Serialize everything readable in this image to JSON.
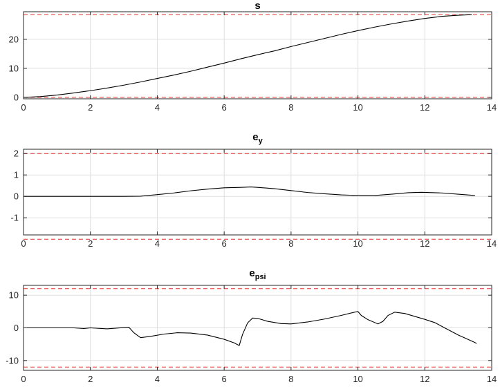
{
  "chart_data": [
    {
      "type": "line",
      "title": "s",
      "title_subscript": "",
      "xlim": [
        0,
        14
      ],
      "ylim": [
        -0.5,
        29.5
      ],
      "x_ticks": [
        0,
        2,
        4,
        6,
        8,
        10,
        12,
        14
      ],
      "y_ticks": [
        0,
        10,
        20
      ],
      "grid": true,
      "limits": [
        28.5,
        0
      ],
      "limit_color": "#e0312f",
      "series": [
        {
          "color": "#000000",
          "points": [
            [
              0,
              0
            ],
            [
              0.5,
              0.25
            ],
            [
              1,
              0.8
            ],
            [
              1.5,
              1.5
            ],
            [
              2,
              2.3
            ],
            [
              2.5,
              3.2
            ],
            [
              3,
              4.2
            ],
            [
              3.5,
              5.3
            ],
            [
              4,
              6.5
            ],
            [
              4.5,
              7.7
            ],
            [
              5,
              9
            ],
            [
              5.5,
              10.4
            ],
            [
              6,
              11.8
            ],
            [
              6.5,
              13.3
            ],
            [
              7,
              14.7
            ],
            [
              7.5,
              16
            ],
            [
              8,
              17.5
            ],
            [
              8.5,
              18.9
            ],
            [
              9,
              20.3
            ],
            [
              9.5,
              21.7
            ],
            [
              10,
              23
            ],
            [
              10.5,
              24.2
            ],
            [
              11,
              25.3
            ],
            [
              11.5,
              26.3
            ],
            [
              12,
              27.2
            ],
            [
              12.5,
              27.9
            ],
            [
              13,
              28.3
            ],
            [
              13.4,
              28.5
            ]
          ]
        }
      ]
    },
    {
      "type": "line",
      "title": "e",
      "title_subscript": "y",
      "xlim": [
        0,
        14
      ],
      "ylim": [
        -1.8,
        2.2
      ],
      "x_ticks": [
        0,
        2,
        4,
        6,
        8,
        10,
        12,
        14
      ],
      "y_ticks": [
        -1,
        0,
        1,
        2
      ],
      "grid": true,
      "limits": [
        2,
        -2
      ],
      "limit_color": "#e0312f",
      "series": [
        {
          "color": "#000000",
          "points": [
            [
              0,
              0
            ],
            [
              1,
              0
            ],
            [
              2,
              0
            ],
            [
              3,
              0
            ],
            [
              3.5,
              0.01
            ],
            [
              4,
              0.08
            ],
            [
              4.5,
              0.16
            ],
            [
              5,
              0.26
            ],
            [
              5.5,
              0.34
            ],
            [
              6,
              0.4
            ],
            [
              6.5,
              0.42
            ],
            [
              6.8,
              0.44
            ],
            [
              7,
              0.42
            ],
            [
              7.5,
              0.36
            ],
            [
              8,
              0.27
            ],
            [
              8.5,
              0.18
            ],
            [
              9,
              0.12
            ],
            [
              9.5,
              0.07
            ],
            [
              10,
              0.04
            ],
            [
              10.5,
              0.04
            ],
            [
              11,
              0.1
            ],
            [
              11.5,
              0.17
            ],
            [
              11.9,
              0.19
            ],
            [
              12.5,
              0.16
            ],
            [
              13,
              0.1
            ],
            [
              13.5,
              0.04
            ]
          ]
        }
      ]
    },
    {
      "type": "line",
      "title": "e",
      "title_subscript": "psi",
      "xlim": [
        0,
        14
      ],
      "ylim": [
        -13,
        13
      ],
      "x_ticks": [
        0,
        2,
        4,
        6,
        8,
        10,
        12,
        14
      ],
      "y_ticks": [
        -10,
        0,
        10
      ],
      "grid": true,
      "limits": [
        12,
        -12
      ],
      "limit_color": "#e0312f",
      "series": [
        {
          "color": "#000000",
          "points": [
            [
              0,
              0
            ],
            [
              1,
              0
            ],
            [
              1.5,
              0
            ],
            [
              1.8,
              -0.2
            ],
            [
              2,
              0
            ],
            [
              2.5,
              -0.3
            ],
            [
              3,
              0.1
            ],
            [
              3.15,
              0.2
            ],
            [
              3.3,
              -1.5
            ],
            [
              3.5,
              -3
            ],
            [
              3.8,
              -2.6
            ],
            [
              4.2,
              -1.9
            ],
            [
              4.6,
              -1.5
            ],
            [
              5,
              -1.6
            ],
            [
              5.5,
              -2.2
            ],
            [
              6,
              -3.5
            ],
            [
              6.3,
              -4.6
            ],
            [
              6.45,
              -5.4
            ],
            [
              6.55,
              -2
            ],
            [
              6.7,
              1.5
            ],
            [
              6.85,
              3
            ],
            [
              7,
              2.9
            ],
            [
              7.3,
              2
            ],
            [
              7.7,
              1.3
            ],
            [
              8,
              1.2
            ],
            [
              8.5,
              1.8
            ],
            [
              9,
              2.7
            ],
            [
              9.5,
              3.8
            ],
            [
              9.9,
              4.8
            ],
            [
              10,
              5
            ],
            [
              10.1,
              3.8
            ],
            [
              10.3,
              2.5
            ],
            [
              10.6,
              1.2
            ],
            [
              10.75,
              2
            ],
            [
              10.9,
              3.8
            ],
            [
              11.1,
              4.8
            ],
            [
              11.4,
              4.4
            ],
            [
              12,
              2.6
            ],
            [
              12.3,
              1.6
            ],
            [
              12.5,
              0.5
            ],
            [
              13,
              -2.2
            ],
            [
              13.5,
              -4.5
            ],
            [
              13.55,
              -4.8
            ]
          ]
        }
      ]
    }
  ]
}
